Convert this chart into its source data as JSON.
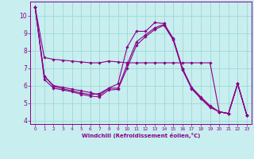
{
  "xlabel": "Windchill (Refroidissement éolien,°C)",
  "xlim": [
    -0.5,
    23.5
  ],
  "ylim": [
    3.8,
    10.8
  ],
  "yticks": [
    4,
    5,
    6,
    7,
    8,
    9,
    10
  ],
  "xticks": [
    0,
    1,
    2,
    3,
    4,
    5,
    6,
    7,
    8,
    9,
    10,
    11,
    12,
    13,
    14,
    15,
    16,
    17,
    18,
    19,
    20,
    21,
    22,
    23
  ],
  "bg_color": "#c8eef0",
  "grid_color": "#a0d8d8",
  "line_color": "#880088",
  "line1": [
    10.5,
    7.6,
    7.5,
    7.45,
    7.4,
    7.35,
    7.3,
    7.3,
    7.4,
    7.35,
    7.3,
    7.3,
    7.3,
    7.3,
    7.3,
    7.3,
    7.3,
    7.3,
    7.3,
    7.3,
    4.5,
    4.4,
    6.1,
    4.3
  ],
  "line2": [
    10.5,
    6.55,
    6.0,
    5.9,
    5.8,
    5.7,
    5.6,
    5.45,
    5.85,
    6.1,
    8.2,
    9.1,
    9.1,
    9.6,
    9.55,
    8.7,
    7.0,
    5.9,
    5.35,
    4.85,
    4.5,
    4.4,
    6.1,
    4.3
  ],
  "line3": [
    10.5,
    6.55,
    5.95,
    5.82,
    5.7,
    5.58,
    5.48,
    5.55,
    5.85,
    5.85,
    7.2,
    8.5,
    8.9,
    9.3,
    9.5,
    8.65,
    6.95,
    5.85,
    5.3,
    4.8,
    4.5,
    4.4,
    6.1,
    4.3
  ],
  "line4": [
    10.5,
    6.35,
    5.85,
    5.75,
    5.65,
    5.5,
    5.4,
    5.35,
    5.75,
    5.78,
    7.0,
    8.3,
    8.8,
    9.2,
    9.45,
    8.6,
    6.9,
    5.82,
    5.25,
    4.75,
    4.5,
    4.4,
    6.1,
    4.3
  ]
}
